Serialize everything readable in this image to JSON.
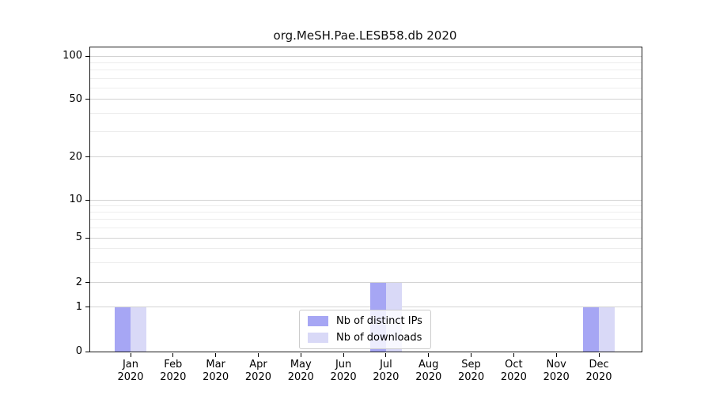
{
  "figure": {
    "background": "#ffffff",
    "frame_color": "#1a1a1a",
    "grid_major_color": "#d3d3d3",
    "grid_minor_color": "#ededed"
  },
  "chart_data": {
    "type": "bar",
    "title": "org.MeSH.Pae.LESB58.db 2020",
    "categories": [
      "Jan 2020",
      "Feb 2020",
      "Mar 2020",
      "Apr 2020",
      "May 2020",
      "Jun 2020",
      "Jul 2020",
      "Aug 2020",
      "Sep 2020",
      "Oct 2020",
      "Nov 2020",
      "Dec 2020"
    ],
    "x_tick_months": [
      "Jan",
      "Feb",
      "Mar",
      "Apr",
      "May",
      "Jun",
      "Jul",
      "Aug",
      "Sep",
      "Oct",
      "Nov",
      "Dec"
    ],
    "x_tick_year": "2020",
    "series": [
      {
        "name": "Nb of distinct IPs",
        "color": "#a6a6f4",
        "values": [
          1,
          0,
          0,
          0,
          0,
          0,
          2,
          0,
          0,
          0,
          0,
          1
        ]
      },
      {
        "name": "Nb of downloads",
        "color": "#d9d9f7",
        "values": [
          1,
          0,
          0,
          0,
          0,
          0,
          2,
          0,
          0,
          0,
          0,
          1
        ]
      }
    ],
    "xlabel": "",
    "ylabel": "",
    "yscale": "symlog",
    "ylim": [
      0,
      115
    ],
    "yticks": [
      0,
      1,
      2,
      5,
      10,
      20,
      50,
      100
    ],
    "yticks_minor": [
      3,
      4,
      6,
      7,
      8,
      9,
      30,
      40,
      60,
      70,
      80,
      90
    ],
    "grid": true,
    "legend_position": "lower center"
  }
}
